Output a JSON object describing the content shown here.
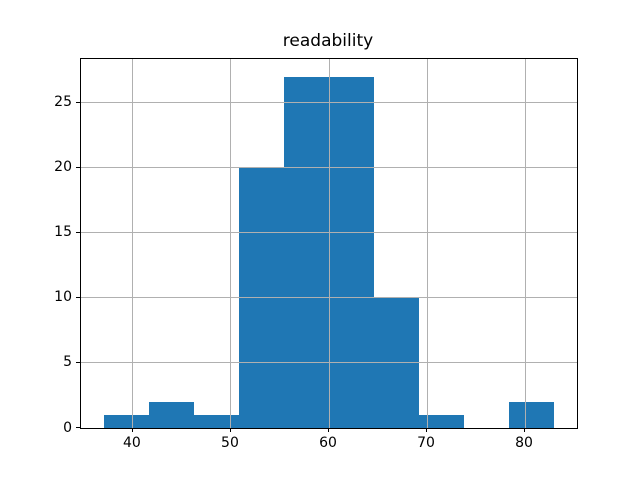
{
  "chart_data": {
    "type": "bar",
    "subtype": "histogram",
    "title": "readability",
    "xlabel": "",
    "ylabel": "",
    "bin_edges": [
      37.0,
      41.6,
      46.2,
      50.8,
      55.4,
      60.0,
      64.6,
      69.2,
      73.8,
      78.4,
      83.0
    ],
    "values": [
      1,
      2,
      1,
      20,
      27,
      27,
      10,
      1,
      0,
      2
    ],
    "xlim": [
      34.7,
      85.3
    ],
    "ylim": [
      0,
      28.35
    ],
    "x_ticks": [
      40,
      50,
      60,
      70,
      80
    ],
    "y_ticks": [
      0,
      5,
      10,
      15,
      20,
      25
    ],
    "grid": true,
    "grid_above_bars": true,
    "legend": null,
    "bar_color": "#1f77b4",
    "grid_color": "#b0b0b0",
    "spine_color": "#000000",
    "background_color": "#ffffff",
    "text_color": "#000000"
  }
}
